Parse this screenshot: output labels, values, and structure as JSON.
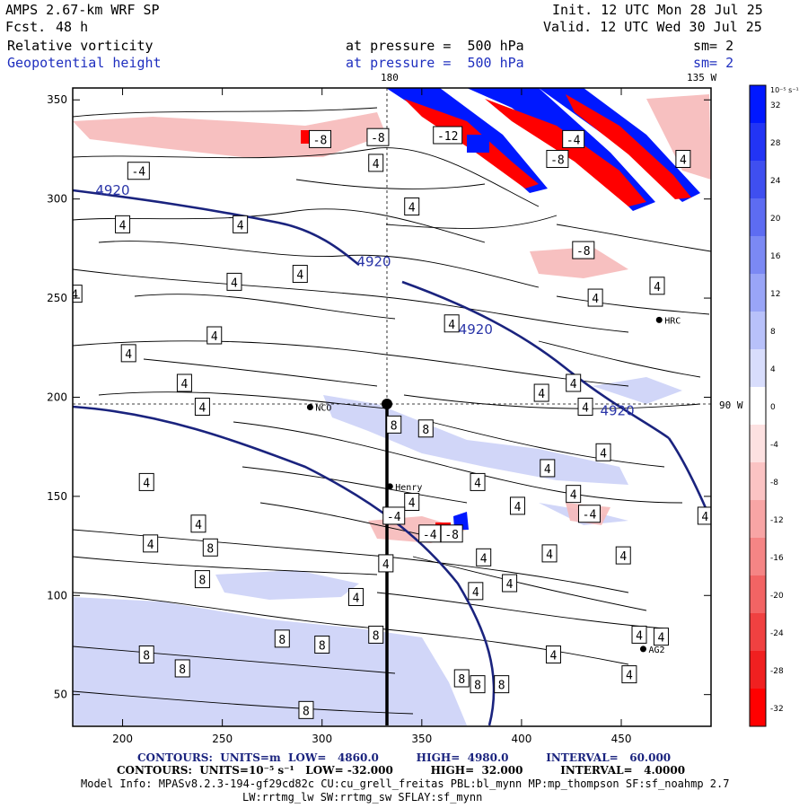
{
  "header": {
    "model": "AMPS 2.67-km WRF SP",
    "fcst_label": "Fcst.",
    "fcst_value": "48 h",
    "init": "Init. 12 UTC Mon 28 Jul 25",
    "valid": "Valid. 12 UTC Wed 30 Jul 25",
    "field1_name": "Relative vorticity",
    "field1_pressure": "at pressure =  500 hPa",
    "field1_sm": "sm= 2",
    "field2_name": "Geopotential height",
    "field2_pressure": "at pressure =  500 hPa",
    "field2_sm": "sm= 2"
  },
  "map": {
    "lon_top_labels": [
      "180",
      "135 W"
    ],
    "lon_right_label": "90 W",
    "x_ticks": [
      "200",
      "250",
      "300",
      "350",
      "400",
      "450"
    ],
    "x_tick_values": [
      200,
      250,
      300,
      350,
      400,
      450
    ],
    "y_ticks": [
      "350",
      "300",
      "250",
      "200",
      "150",
      "100",
      "50"
    ],
    "y_tick_values": [
      350,
      300,
      250,
      200,
      150,
      100,
      50
    ],
    "x_range": [
      175,
      495
    ],
    "y_range": [
      34,
      356
    ],
    "stations": [
      {
        "name": "NCO",
        "x": 294,
        "y": 195
      },
      {
        "name": "Henry",
        "x": 334,
        "y": 155
      },
      {
        "name": "HRC",
        "x": 469,
        "y": 239
      },
      {
        "name": "AG2",
        "x": 461,
        "y": 73
      }
    ],
    "height_contour_labels": [
      {
        "text": "4920",
        "x": 195,
        "y": 302
      },
      {
        "text": "4920",
        "x": 326,
        "y": 266
      },
      {
        "text": "4920",
        "x": 377,
        "y": 232
      },
      {
        "text": "4920",
        "x": 448,
        "y": 191
      }
    ],
    "vorticity_labels": [
      {
        "text": "-8",
        "x": 299,
        "y": 330
      },
      {
        "text": "-8",
        "x": 328,
        "y": 331
      },
      {
        "text": "-12",
        "x": 363,
        "y": 332
      },
      {
        "text": "-4",
        "x": 208,
        "y": 314
      },
      {
        "text": "4",
        "x": 327,
        "y": 318
      },
      {
        "text": "-4",
        "x": 426,
        "y": 330
      },
      {
        "text": "4",
        "x": 481,
        "y": 320
      },
      {
        "text": "-8",
        "x": 418,
        "y": 320
      },
      {
        "text": "4",
        "x": 200,
        "y": 287
      },
      {
        "text": "4",
        "x": 259,
        "y": 287
      },
      {
        "text": "4",
        "x": 345,
        "y": 296
      },
      {
        "text": "-8",
        "x": 431,
        "y": 274
      },
      {
        "text": "4",
        "x": 256,
        "y": 258
      },
      {
        "text": "4",
        "x": 289,
        "y": 262
      },
      {
        "text": "4",
        "x": 468,
        "y": 256
      },
      {
        "text": "4",
        "x": 176,
        "y": 252
      },
      {
        "text": "4",
        "x": 365,
        "y": 237
      },
      {
        "text": "4",
        "x": 437,
        "y": 250
      },
      {
        "text": "4",
        "x": 246,
        "y": 231
      },
      {
        "text": "4",
        "x": 203,
        "y": 222
      },
      {
        "text": "4",
        "x": 231,
        "y": 207
      },
      {
        "text": "4",
        "x": 426,
        "y": 207
      },
      {
        "text": "4",
        "x": 410,
        "y": 202
      },
      {
        "text": "4",
        "x": 240,
        "y": 195
      },
      {
        "text": "4",
        "x": 432,
        "y": 195
      },
      {
        "text": "8",
        "x": 336,
        "y": 186
      },
      {
        "text": "8",
        "x": 352,
        "y": 184
      },
      {
        "text": "4",
        "x": 441,
        "y": 172
      },
      {
        "text": "4",
        "x": 212,
        "y": 157
      },
      {
        "text": "4",
        "x": 378,
        "y": 157
      },
      {
        "text": "4",
        "x": 413,
        "y": 164
      },
      {
        "text": "4",
        "x": 345,
        "y": 147
      },
      {
        "text": "4",
        "x": 398,
        "y": 145
      },
      {
        "text": "4",
        "x": 426,
        "y": 151
      },
      {
        "text": "-4",
        "x": 434,
        "y": 141
      },
      {
        "text": "4",
        "x": 492,
        "y": 140
      },
      {
        "text": "-4",
        "x": 336,
        "y": 140
      },
      {
        "text": "4",
        "x": 238,
        "y": 136
      },
      {
        "text": "-4",
        "x": 354,
        "y": 131
      },
      {
        "text": "-8",
        "x": 365,
        "y": 131
      },
      {
        "text": "4",
        "x": 214,
        "y": 126
      },
      {
        "text": "8",
        "x": 244,
        "y": 124
      },
      {
        "text": "4",
        "x": 381,
        "y": 119
      },
      {
        "text": "4",
        "x": 414,
        "y": 121
      },
      {
        "text": "4",
        "x": 451,
        "y": 120
      },
      {
        "text": "4",
        "x": 332,
        "y": 116
      },
      {
        "text": "8",
        "x": 240,
        "y": 108
      },
      {
        "text": "4",
        "x": 394,
        "y": 106
      },
      {
        "text": "4",
        "x": 377,
        "y": 102
      },
      {
        "text": "4",
        "x": 317,
        "y": 99
      },
      {
        "text": "4",
        "x": 459,
        "y": 80
      },
      {
        "text": "4",
        "x": 470,
        "y": 79
      },
      {
        "text": "8",
        "x": 327,
        "y": 80
      },
      {
        "text": "8",
        "x": 300,
        "y": 75
      },
      {
        "text": "8",
        "x": 280,
        "y": 78
      },
      {
        "text": "8",
        "x": 212,
        "y": 70
      },
      {
        "text": "4",
        "x": 416,
        "y": 70
      },
      {
        "text": "8",
        "x": 230,
        "y": 63
      },
      {
        "text": "4",
        "x": 454,
        "y": 60
      },
      {
        "text": "8",
        "x": 370,
        "y": 58
      },
      {
        "text": "8",
        "x": 378,
        "y": 55
      },
      {
        "text": "8",
        "x": 390,
        "y": 55
      },
      {
        "text": "8",
        "x": 292,
        "y": 42
      }
    ]
  },
  "colorbar": {
    "unit": "10⁻⁵ s⁻¹",
    "labels": [
      "32",
      "28",
      "24",
      "20",
      "16",
      "12",
      "8",
      "4",
      "0",
      "-4",
      "-8",
      "-12",
      "-16",
      "-20",
      "-24",
      "-28",
      "-32"
    ],
    "colors": [
      "#0018ff",
      "#2234f5",
      "#3f4ff0",
      "#5d6cf2",
      "#7b89f4",
      "#99a5f7",
      "#b8c1fa",
      "#d8ddfc",
      "#ffffff",
      "#fde1e1",
      "#fbc3c3",
      "#f8a5a5",
      "#f58585",
      "#f26464",
      "#f04141",
      "#f02020",
      "#ff0000"
    ]
  },
  "footer": {
    "line1": "CONTOURS:  UNITS=m  LOW=   4860.0          HIGH=  4980.0          INTERVAL=   60.000",
    "line2": "CONTOURS:  UNITS=10⁻⁵ s⁻¹   LOW= -32.000          HIGH=  32.000          INTERVAL=   4.0000",
    "line3": "Model Info: MPASv8.2.3-194-gf29cd82c CU:cu_grell_freitas PBL:bl_mynn MP:mp_thompson SF:sf_noahmp 2.7",
    "line4": "LW:rrtmg_lw SW:rrtmg_sw SFLAY:sf_mynn"
  }
}
